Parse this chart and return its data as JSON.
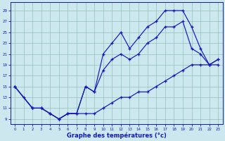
{
  "title": "Graphe des températures (°c)",
  "bg_color": "#cce8ee",
  "grid_color": "#9ac8c0",
  "line_color": "#1515bb",
  "xlim": [
    -0.5,
    23.5
  ],
  "ylim": [
    8.0,
    30.5
  ],
  "xticks": [
    0,
    1,
    2,
    3,
    4,
    5,
    6,
    7,
    8,
    9,
    10,
    11,
    12,
    13,
    14,
    15,
    16,
    17,
    18,
    19,
    20,
    21,
    22,
    23
  ],
  "yticks": [
    9,
    11,
    13,
    15,
    17,
    19,
    21,
    23,
    25,
    27,
    29
  ],
  "line1_x": [
    0,
    1,
    2,
    3,
    4,
    5,
    6,
    7,
    8,
    9,
    10,
    11,
    12,
    13,
    14,
    15,
    16,
    17,
    18,
    19,
    20,
    21,
    22,
    23
  ],
  "line1_y": [
    15,
    13,
    11,
    11,
    10,
    9,
    10,
    10,
    10,
    10,
    11,
    12,
    13,
    13,
    14,
    14,
    15,
    16,
    17,
    18,
    19,
    19,
    19,
    19
  ],
  "line2_x": [
    0,
    2,
    3,
    4,
    5,
    6,
    7,
    8,
    9,
    10,
    11,
    12,
    13,
    14,
    15,
    16,
    17,
    18,
    19,
    20,
    21,
    22,
    23
  ],
  "line2_y": [
    15,
    11,
    11,
    10,
    9,
    10,
    10,
    15,
    14,
    21,
    23,
    25,
    22,
    24,
    26,
    27,
    29,
    29,
    29,
    26,
    22,
    19,
    20
  ],
  "line3_x": [
    0,
    2,
    3,
    4,
    5,
    6,
    7,
    8,
    9,
    10,
    11,
    12,
    13,
    14,
    15,
    16,
    17,
    18,
    19,
    20,
    21,
    22,
    23
  ],
  "line3_y": [
    15,
    11,
    11,
    10,
    9,
    10,
    10,
    15,
    14,
    18,
    20,
    21,
    20,
    21,
    23,
    24,
    26,
    26,
    27,
    22,
    21,
    19,
    20
  ]
}
